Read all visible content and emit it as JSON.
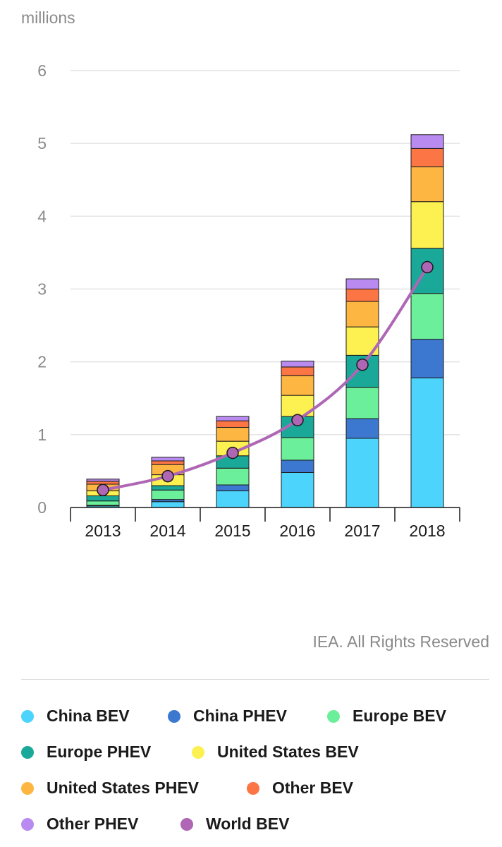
{
  "chart_data": {
    "type": "bar",
    "stacked": true,
    "unit_label": "millions",
    "categories": [
      "2013",
      "2014",
      "2015",
      "2016",
      "2017",
      "2018"
    ],
    "ylim": [
      0,
      6
    ],
    "yticks": [
      0,
      1,
      2,
      3,
      4,
      5,
      6
    ],
    "grid": true,
    "series": [
      {
        "name": "China BEV",
        "color": "#4dd4fc",
        "values": [
          0.02,
          0.08,
          0.23,
          0.48,
          0.95,
          1.78
        ]
      },
      {
        "name": "China PHEV",
        "color": "#3d78d0",
        "values": [
          0.01,
          0.03,
          0.08,
          0.17,
          0.27,
          0.53
        ]
      },
      {
        "name": "Europe BEV",
        "color": "#6cef9a",
        "values": [
          0.06,
          0.13,
          0.23,
          0.31,
          0.43,
          0.63
        ]
      },
      {
        "name": "Europe PHEV",
        "color": "#1aa898",
        "values": [
          0.07,
          0.06,
          0.17,
          0.29,
          0.44,
          0.62
        ]
      },
      {
        "name": "United States BEV",
        "color": "#fcf150",
        "values": [
          0.07,
          0.15,
          0.2,
          0.29,
          0.39,
          0.64
        ]
      },
      {
        "name": "United States PHEV",
        "color": "#fdb642",
        "values": [
          0.09,
          0.14,
          0.19,
          0.27,
          0.35,
          0.48
        ]
      },
      {
        "name": "Other BEV",
        "color": "#fb7545",
        "values": [
          0.04,
          0.05,
          0.09,
          0.12,
          0.17,
          0.25
        ]
      },
      {
        "name": "Other PHEV",
        "color": "#b98bf0",
        "values": [
          0.03,
          0.05,
          0.06,
          0.08,
          0.14,
          0.19
        ]
      }
    ],
    "line": {
      "name": "World BEV",
      "color": "#ae66b5",
      "values": [
        0.24,
        0.43,
        0.75,
        1.2,
        1.96,
        3.3
      ]
    }
  },
  "credit": "IEA. All Rights Reserved",
  "legend": [
    {
      "label": "China BEV",
      "color": "#4dd4fc"
    },
    {
      "label": "China PHEV",
      "color": "#3d78d0"
    },
    {
      "label": "Europe BEV",
      "color": "#6cef9a"
    },
    {
      "label": "Europe PHEV",
      "color": "#1aa898"
    },
    {
      "label": "United States BEV",
      "color": "#fcf150"
    },
    {
      "label": "United States PHEV",
      "color": "#fdb642"
    },
    {
      "label": "Other BEV",
      "color": "#fb7545"
    },
    {
      "label": "Other PHEV",
      "color": "#b98bf0"
    },
    {
      "label": "World BEV",
      "color": "#ae66b5"
    }
  ]
}
